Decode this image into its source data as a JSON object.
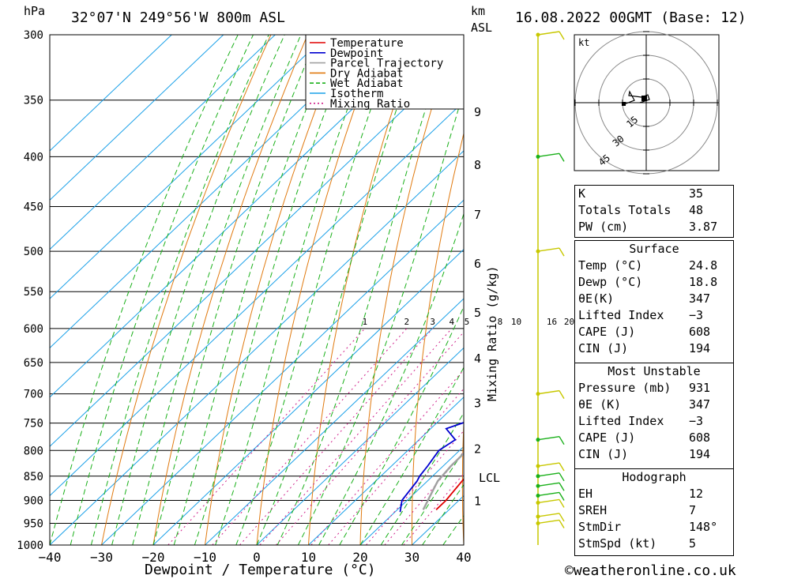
{
  "header": {
    "location": "32°07'N  249°56'W  800m  ASL",
    "datetime": "16.08.2022  00GMT  (Base: 12)",
    "left_unit": "hPa",
    "right_unit_1": "km",
    "right_unit_2": "ASL"
  },
  "axes": {
    "xlabel": "Dewpoint / Temperature (°C)",
    "mixing_label": "Mixing Ratio (g/kg)",
    "lcl_label": "LCL"
  },
  "chart_data": {
    "type": "line",
    "pressure_levels": [
      300,
      350,
      400,
      450,
      500,
      550,
      600,
      650,
      700,
      750,
      800,
      850,
      900,
      950,
      1000
    ],
    "x_ticks": [
      -40,
      -30,
      -20,
      -10,
      0,
      10,
      20,
      30,
      40
    ],
    "xlim": [
      -40,
      40
    ],
    "ylim": [
      1000,
      300
    ],
    "height_ticks_km": [
      1,
      2,
      3,
      4,
      5,
      6,
      7,
      8,
      9
    ],
    "mixing_ratios": [
      1,
      2,
      3,
      4,
      5,
      8,
      10,
      16,
      20,
      25
    ],
    "series": [
      {
        "name": "Temperature",
        "color": "#e00000",
        "points": [
          [
            920,
            27.5
          ],
          [
            900,
            27.5
          ],
          [
            850,
            26.5
          ],
          [
            800,
            25
          ],
          [
            750,
            23.5
          ],
          [
            700,
            21
          ],
          [
            650,
            18
          ],
          [
            600,
            15
          ],
          [
            550,
            13
          ],
          [
            500,
            11
          ],
          [
            450,
            7.5
          ],
          [
            400,
            4.5
          ],
          [
            370,
            3
          ],
          [
            360,
            1
          ],
          [
            300,
            -2
          ]
        ]
      },
      {
        "name": "Dewpoint",
        "color": "#0000d0",
        "points": [
          [
            925,
            21
          ],
          [
            900,
            19
          ],
          [
            860,
            18
          ],
          [
            850,
            17.5
          ],
          [
            830,
            17
          ],
          [
            800,
            16
          ],
          [
            780,
            17
          ],
          [
            760,
            13
          ],
          [
            740,
            17
          ],
          [
            700,
            16
          ],
          [
            650,
            14.5
          ],
          [
            610,
            13
          ],
          [
            595,
            13
          ],
          [
            570,
            13
          ],
          [
            555,
            12
          ],
          [
            540,
            7
          ],
          [
            520,
            10
          ],
          [
            500,
            5
          ],
          [
            495,
            8
          ],
          [
            480,
            4.5
          ],
          [
            470,
            3
          ],
          [
            455,
            11
          ],
          [
            445,
            11
          ],
          [
            420,
            9
          ],
          [
            400,
            8
          ],
          [
            370,
            5.5
          ],
          [
            360,
            7
          ],
          [
            350,
            3
          ],
          [
            300,
            0
          ]
        ]
      },
      {
        "name": "Parcel Trajectory",
        "color": "#a0a0a0",
        "points": [
          [
            920,
            25
          ],
          [
            880,
            23
          ],
          [
            860,
            22
          ],
          [
            830,
            21.5
          ],
          [
            750,
            21.3
          ],
          [
            700,
            20.5
          ],
          [
            650,
            19
          ],
          [
            600,
            17.5
          ],
          [
            550,
            15
          ],
          [
            500,
            12.5
          ],
          [
            450,
            10
          ],
          [
            400,
            7
          ],
          [
            360,
            4
          ]
        ]
      }
    ],
    "legend": [
      "Temperature",
      "Dewpoint",
      "Parcel Trajectory",
      "Dry Adiabat",
      "Wet Adiabat",
      "Isotherm",
      "Mixing Ratio"
    ],
    "hodograph": {
      "unit": "kt",
      "rings": [
        15,
        30,
        45
      ]
    }
  },
  "stats": {
    "main": [
      {
        "k": "K",
        "v": "35"
      },
      {
        "k": "Totals Totals",
        "v": "48"
      },
      {
        "k": "PW (cm)",
        "v": "3.87"
      }
    ],
    "surface_title": "Surface",
    "surface": [
      {
        "k": "Temp (°C)",
        "v": "24.8"
      },
      {
        "k": "Dewp (°C)",
        "v": "18.8"
      },
      {
        "k": "θE(K)",
        "v": "347"
      },
      {
        "k": "Lifted Index",
        "v": "-3"
      },
      {
        "k": "CAPE (J)",
        "v": "608"
      },
      {
        "k": "CIN (J)",
        "v": "194"
      }
    ],
    "unstable_title": "Most Unstable",
    "unstable": [
      {
        "k": "Pressure (mb)",
        "v": "931"
      },
      {
        "k": "θE (K)",
        "v": "347"
      },
      {
        "k": "Lifted Index",
        "v": "-3"
      },
      {
        "k": "CAPE (J)",
        "v": "608"
      },
      {
        "k": "CIN (J)",
        "v": "194"
      }
    ],
    "hodograph_title": "Hodograph",
    "hodograph": [
      {
        "k": "EH",
        "v": "12"
      },
      {
        "k": "SREH",
        "v": "7"
      },
      {
        "k": "StmDir",
        "v": "148°"
      },
      {
        "k": "StmSpd (kt)",
        "v": "5"
      }
    ]
  },
  "footer": {
    "credit": "©weatheronline.co.uk"
  }
}
